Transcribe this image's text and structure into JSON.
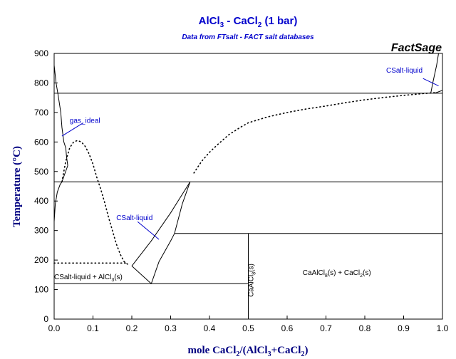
{
  "chart_data": {
    "type": "line",
    "title": "AlCl3 - CaCl2 (1 bar)",
    "title_parts": {
      "a": "AlCl",
      "a_sub": "3",
      "mid": " - CaCl",
      "b_sub": "2",
      "end": " (1 bar)"
    },
    "subtitle": "Data from FTsalt - FACT salt databases",
    "brand": "FactSage",
    "xlabel": "mole CaCl2/(AlCl3+CaCl2)",
    "xlabel_parts": {
      "a": "mole CaCl",
      "s1": "2",
      "b": "/(AlCl",
      "s2": "3",
      "c": "+CaCl",
      "s3": "2",
      "d": ")"
    },
    "ylabel": "Temperature (°C)",
    "xlim": [
      0,
      1
    ],
    "ylim": [
      0,
      900
    ],
    "xticks": [
      0.0,
      0.1,
      0.2,
      0.3,
      0.4,
      0.5,
      0.6,
      0.7,
      0.8,
      0.9,
      1.0
    ],
    "xtick_labels": [
      "0.0",
      "0.1",
      "0.2",
      "0.3",
      "0.4",
      "0.5",
      "0.6",
      "0.7",
      "0.8",
      "0.9",
      "1.0"
    ],
    "yticks": [
      0,
      100,
      200,
      300,
      400,
      500,
      600,
      700,
      800,
      900
    ],
    "ytick_labels": [
      "0",
      "100",
      "200",
      "300",
      "400",
      "500",
      "600",
      "700",
      "800",
      "900"
    ],
    "grid": false,
    "colors": {
      "title": "#0000cc",
      "annotation": "#0000cc",
      "axis_label": "#000080",
      "line": "#000000",
      "frame": "#000000"
    },
    "series": [
      {
        "style": "solid",
        "x": [
          0.0,
          0.0,
          0.005,
          0.01,
          0.017,
          0.02,
          0.025,
          0.03,
          0.032,
          0.035
        ],
        "y": [
          900,
          860,
          800,
          760,
          700,
          650,
          600,
          580,
          550,
          520
        ]
      },
      {
        "style": "solid",
        "x": [
          0.0,
          0.003,
          0.008,
          0.015,
          0.02
        ],
        "y": [
          330,
          390,
          430,
          455,
          465
        ]
      },
      {
        "style": "solid",
        "x": [
          0.02,
          0.035
        ],
        "y": [
          465,
          520
        ]
      },
      {
        "style": "dotted",
        "x": [
          0.0,
          0.01,
          0.02,
          0.03,
          0.04,
          0.05,
          0.06,
          0.07,
          0.08,
          0.09,
          0.1,
          0.11,
          0.12,
          0.13,
          0.14,
          0.15,
          0.16,
          0.17,
          0.18,
          0.19
        ],
        "y": [
          190,
          190,
          190,
          190,
          190,
          190,
          190,
          190,
          190,
          190,
          190,
          190,
          190,
          190,
          190,
          190,
          190,
          190,
          190,
          190
        ]
      },
      {
        "style": "dotted",
        "x": [
          0.02,
          0.03,
          0.04,
          0.05,
          0.06,
          0.07,
          0.08,
          0.09,
          0.1,
          0.11,
          0.12,
          0.13,
          0.14,
          0.15,
          0.16,
          0.17,
          0.18,
          0.19
        ],
        "y": [
          465,
          535,
          580,
          600,
          605,
          600,
          585,
          560,
          525,
          480,
          440,
          395,
          345,
          300,
          255,
          220,
          195,
          185
        ]
      },
      {
        "style": "dotted",
        "x": [
          0.36,
          0.37,
          0.38,
          0.4,
          0.42,
          0.45,
          0.48,
          0.5,
          0.55,
          0.6,
          0.65,
          0.7,
          0.75,
          0.8,
          0.85,
          0.9,
          0.95,
          0.98
        ],
        "y": [
          495,
          515,
          535,
          565,
          590,
          625,
          650,
          665,
          685,
          700,
          712,
          722,
          733,
          743,
          751,
          758,
          764,
          767
        ]
      },
      {
        "style": "solid",
        "x": [
          0.2,
          0.25,
          0.3,
          0.35
        ],
        "y": [
          180,
          265,
          360,
          465
        ]
      },
      {
        "style": "solid",
        "x": [
          0.2,
          0.25
        ],
        "y": [
          180,
          120
        ]
      },
      {
        "style": "solid",
        "x": [
          0.25,
          0.27,
          0.3,
          0.31
        ],
        "y": [
          120,
          195,
          265,
          290
        ]
      },
      {
        "style": "solid",
        "x": [
          0.31,
          0.33,
          0.35
        ],
        "y": [
          290,
          390,
          465
        ]
      },
      {
        "style": "solid",
        "x": [
          0.0,
          1.0
        ],
        "y": [
          465,
          465
        ]
      },
      {
        "style": "solid",
        "x": [
          0.0,
          1.0
        ],
        "y": [
          765,
          765
        ]
      },
      {
        "style": "solid",
        "x": [
          0.0,
          0.5
        ],
        "y": [
          120,
          120
        ]
      },
      {
        "style": "solid",
        "x": [
          0.31,
          1.0
        ],
        "y": [
          290,
          290
        ]
      },
      {
        "style": "solid",
        "x": [
          0.5,
          0.5
        ],
        "y": [
          0,
          290
        ]
      },
      {
        "style": "solid",
        "x": [
          0.97,
          0.975,
          0.98,
          0.985,
          0.99
        ],
        "y": [
          765,
          800,
          830,
          860,
          900
        ]
      },
      {
        "style": "solid",
        "x": [
          0.98,
          1.0
        ],
        "y": [
          765,
          775
        ]
      }
    ],
    "annotations": [
      {
        "id": "gas-ideal",
        "text": "gas_ideal",
        "x": 0.04,
        "y": 665,
        "line": [
          0.02,
          620,
          0.075,
          665
        ]
      },
      {
        "id": "csalt-liquid-mid",
        "text": "CSalt-liquid",
        "x": 0.16,
        "y": 335,
        "line": [
          0.215,
          330,
          0.27,
          270
        ]
      },
      {
        "id": "csalt-liquid-top",
        "text": "CSalt-liquid",
        "x": 0.855,
        "y": 835,
        "line": [
          0.95,
          815,
          0.99,
          790
        ]
      },
      {
        "id": "region-left",
        "parts": {
          "a": "CSalt-liquid + AlCl",
          "s": "3",
          "b": "(s)"
        },
        "x": 0.0,
        "y": 135
      },
      {
        "id": "region-right",
        "parts": {
          "a": "CaAlCl",
          "s1": "8",
          "b": "(s) + CaCl",
          "s2": "2",
          "c": "(s)"
        },
        "x": 0.64,
        "y": 150
      },
      {
        "id": "compound",
        "parts": {
          "a": "CaAlCl",
          "s": "8",
          "b": "(s)"
        },
        "x": 0.513,
        "y": 75,
        "vertical": true
      }
    ]
  }
}
